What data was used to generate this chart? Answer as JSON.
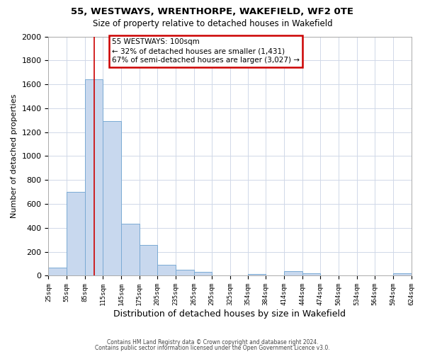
{
  "title": "55, WESTWAYS, WRENTHORPE, WAKEFIELD, WF2 0TE",
  "subtitle": "Size of property relative to detached houses in Wakefield",
  "xlabel": "Distribution of detached houses by size in Wakefield",
  "ylabel": "Number of detached properties",
  "bar_color": "#c8d8ee",
  "bar_edge_color": "#7aaad4",
  "bins": [
    25,
    55,
    85,
    115,
    145,
    175,
    205,
    235,
    265,
    295,
    325,
    354,
    384,
    414,
    444,
    474,
    504,
    534,
    564,
    594,
    624
  ],
  "counts": [
    65,
    700,
    1640,
    1290,
    435,
    255,
    90,
    50,
    30,
    0,
    0,
    15,
    0,
    40,
    20,
    0,
    0,
    0,
    0,
    20
  ],
  "tick_labels": [
    "25sqm",
    "55sqm",
    "85sqm",
    "115sqm",
    "145sqm",
    "175sqm",
    "205sqm",
    "235sqm",
    "265sqm",
    "295sqm",
    "325sqm",
    "354sqm",
    "384sqm",
    "414sqm",
    "444sqm",
    "474sqm",
    "504sqm",
    "534sqm",
    "564sqm",
    "594sqm",
    "624sqm"
  ],
  "property_size": 100,
  "red_line_x": 100,
  "annotation_text_line1": "55 WESTWAYS: 100sqm",
  "annotation_text_line2": "← 32% of detached houses are smaller (1,431)",
  "annotation_text_line3": "67% of semi-detached houses are larger (3,027) →",
  "annotation_box_color": "#ffffff",
  "annotation_box_edge_color": "#cc0000",
  "ylim": [
    0,
    2000
  ],
  "yticks": [
    0,
    200,
    400,
    600,
    800,
    1000,
    1200,
    1400,
    1600,
    1800,
    2000
  ],
  "footer_line1": "Contains HM Land Registry data © Crown copyright and database right 2024.",
  "footer_line2": "Contains public sector information licensed under the Open Government Licence v3.0.",
  "background_color": "#ffffff",
  "grid_color": "#d0d8e8"
}
